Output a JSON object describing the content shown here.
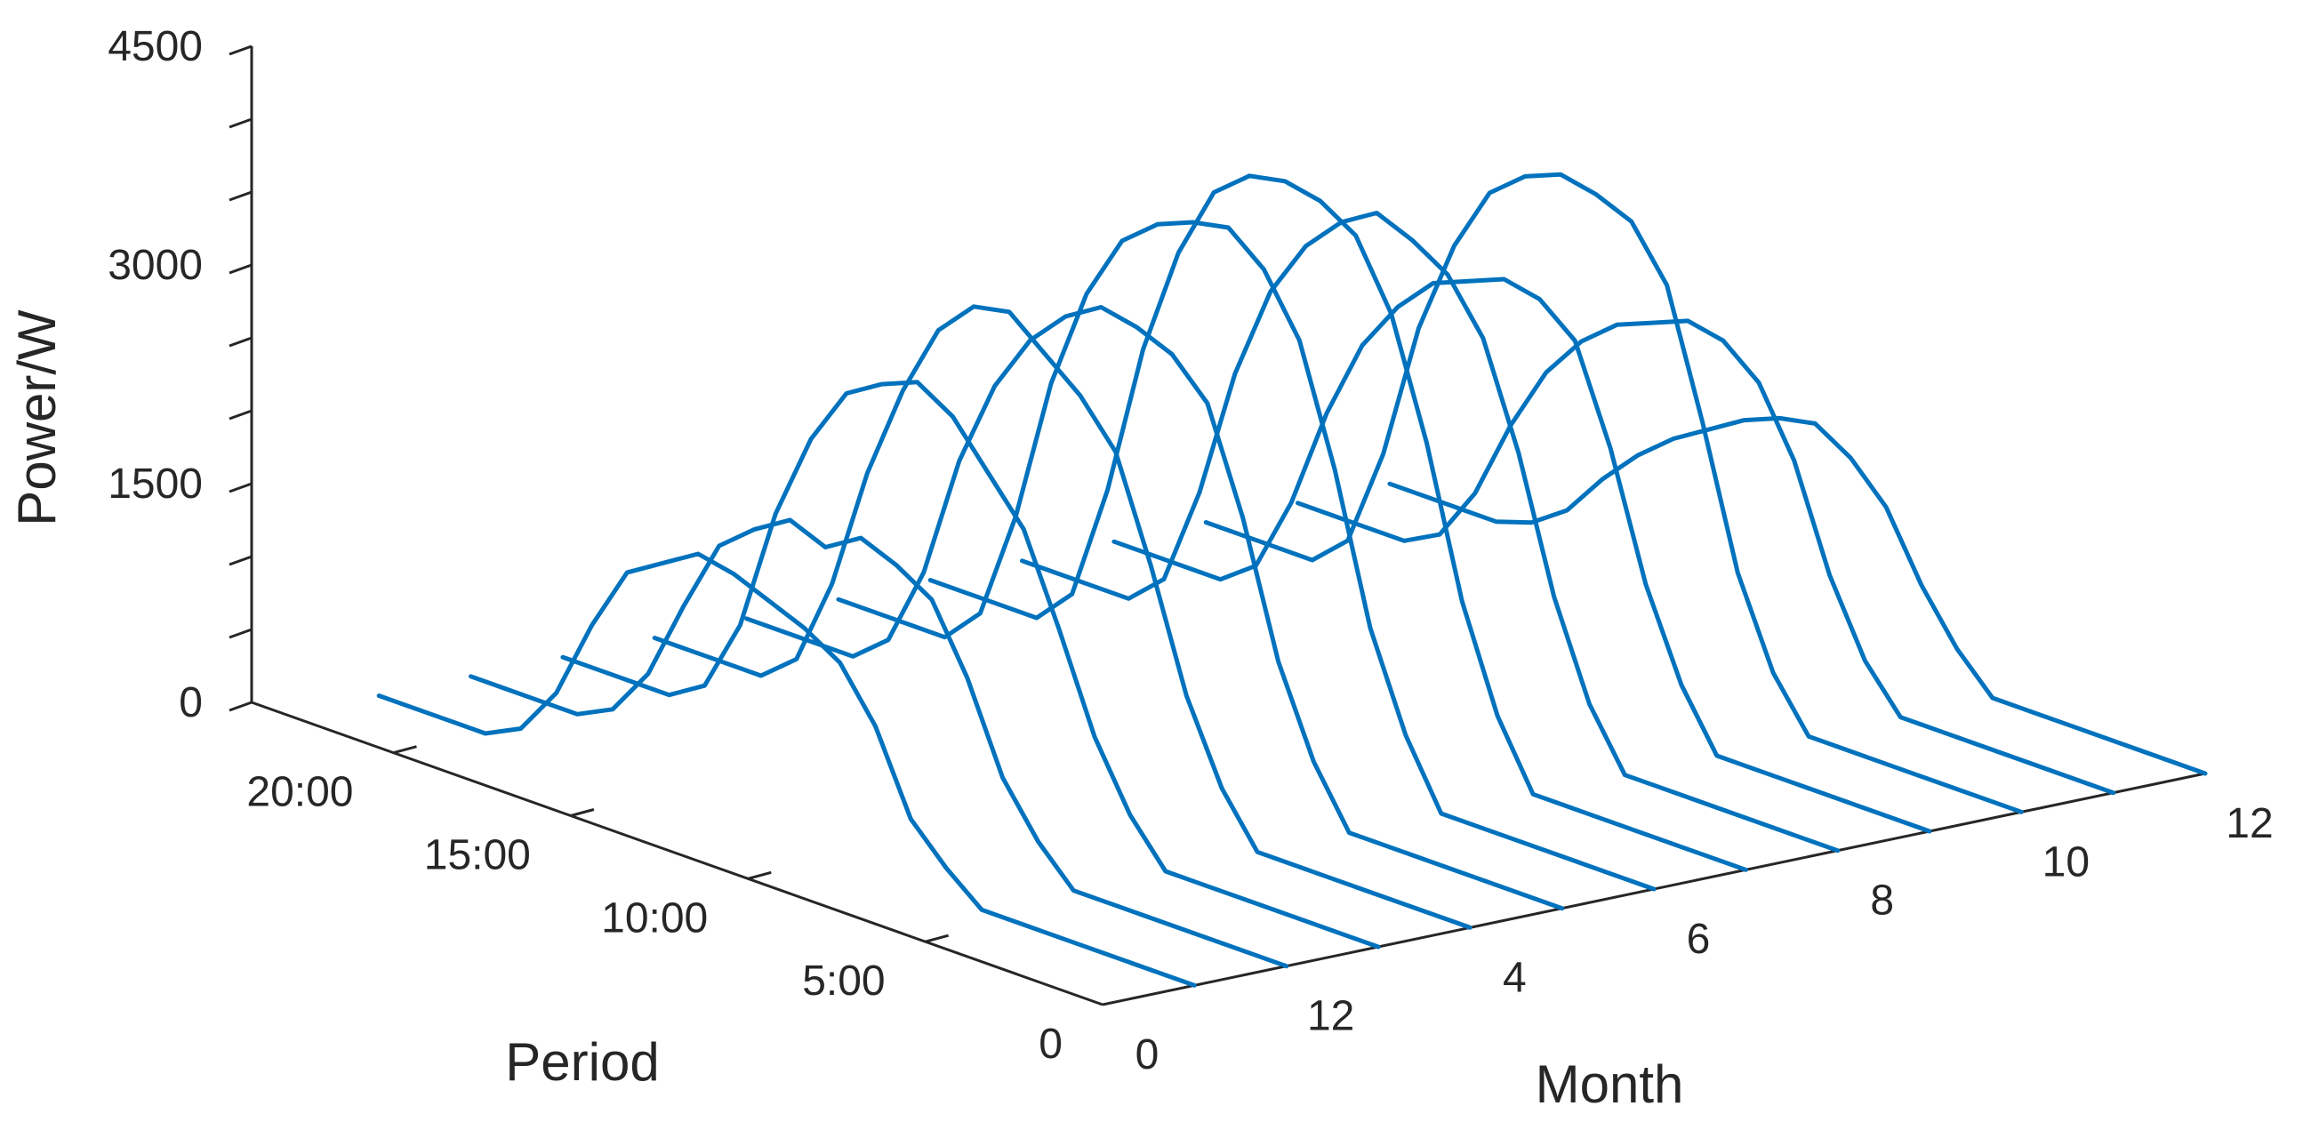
{
  "chart_data": {
    "type": "line",
    "title": "",
    "xlabel": "Period",
    "ylabel": "Month",
    "zlabel": "Power/W",
    "zlim": [
      0,
      4500
    ],
    "z_ticks": [
      0,
      1500,
      3000,
      4500
    ],
    "z_tick_labels": [
      "0",
      "1500",
      "3000",
      "4500"
    ],
    "period_ticks": [
      0,
      5,
      10,
      15,
      20
    ],
    "period_tick_labels": [
      "0",
      "5:00",
      "10:00",
      "15:00",
      "20:00"
    ],
    "month_tick_labels": [
      "0",
      "12",
      "4",
      "6",
      "8",
      "10",
      "12"
    ],
    "line_color": "#0072BD",
    "period_hours": [
      0,
      4,
      5,
      6,
      7,
      8,
      9,
      10,
      11,
      12,
      13,
      14,
      15,
      16,
      17,
      18,
      19,
      20,
      21,
      22,
      23
    ],
    "series": [
      {
        "name": "Month 1",
        "values": [
          0,
          0,
          0,
          0,
          200,
          450,
          1000,
          1350,
          1500,
          1600,
          1700,
          1750,
          1600,
          1450,
          1000,
          450,
          120,
          0,
          0,
          0,
          0
        ]
      },
      {
        "name": "Month 2",
        "values": [
          0,
          0,
          0,
          0,
          250,
          600,
          1200,
          1650,
          1800,
          1900,
          1750,
          1850,
          1700,
          1500,
          1000,
          450,
          120,
          0,
          0,
          0,
          0
        ]
      },
      {
        "name": "Month 3",
        "values": [
          0,
          0,
          0,
          0,
          300,
          750,
          1400,
          2000,
          2300,
          2600,
          2750,
          2650,
          2500,
          2100,
          1500,
          650,
          150,
          0,
          0,
          0,
          0
        ]
      },
      {
        "name": "Month 4",
        "values": [
          0,
          0,
          0,
          0,
          350,
          900,
          1700,
          2400,
          2700,
          2900,
          3100,
          3050,
          2800,
          2300,
          1650,
          800,
          200,
          0,
          0,
          0,
          0
        ]
      },
      {
        "name": "Month 5",
        "values": [
          0,
          0,
          0,
          0,
          400,
          1000,
          1900,
          2600,
          2850,
          2950,
          3000,
          2850,
          2600,
          2200,
          1600,
          750,
          200,
          0,
          0,
          0,
          0
        ]
      },
      {
        "name": "Month 6",
        "values": [
          0,
          0,
          0,
          0,
          450,
          1100,
          2100,
          2900,
          3300,
          3500,
          3450,
          3350,
          3150,
          2700,
          2000,
          1000,
          250,
          0,
          0,
          0,
          0
        ]
      },
      {
        "name": "Month 7",
        "values": [
          0,
          0,
          0,
          0,
          450,
          1150,
          2150,
          2950,
          3400,
          3550,
          3600,
          3550,
          3350,
          2850,
          2100,
          1050,
          250,
          0,
          0,
          0,
          0
        ]
      },
      {
        "name": "Month 8",
        "values": [
          0,
          0,
          0,
          0,
          400,
          1050,
          1950,
          2650,
          3000,
          3150,
          3250,
          3100,
          2850,
          2450,
          1800,
          900,
          220,
          0,
          0,
          0,
          0
        ]
      },
      {
        "name": "Month 9",
        "values": [
          0,
          0,
          0,
          0,
          400,
          1000,
          1850,
          2500,
          2700,
          2750,
          2650,
          2550,
          2300,
          1950,
          1400,
          700,
          180,
          0,
          0,
          0,
          0
        ]
      },
      {
        "name": "Month 10",
        "values": [
          0,
          0,
          0,
          0,
          350,
          950,
          1900,
          2750,
          3100,
          3200,
          3250,
          3150,
          2950,
          2500,
          1850,
          900,
          220,
          0,
          0,
          0,
          0
        ]
      },
      {
        "name": "Month 11",
        "values": [
          0,
          0,
          0,
          0,
          300,
          800,
          1500,
          1950,
          2150,
          2200,
          2100,
          2000,
          1800,
          1500,
          1050,
          500,
          130,
          0,
          0,
          0,
          0
        ]
      },
      {
        "name": "Month 12",
        "values": [
          0,
          0,
          0,
          0,
          250,
          600,
          1050,
          1300,
          1450,
          1400,
          1300,
          1150,
          1000,
          800,
          550,
          250,
          80,
          0,
          0,
          0,
          0
        ]
      }
    ]
  }
}
